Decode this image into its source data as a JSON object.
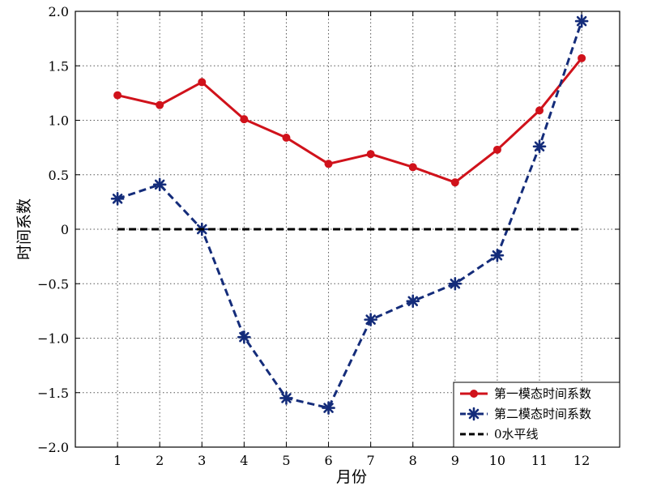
{
  "chart_data": {
    "type": "line",
    "title": "",
    "xlabel": "月份",
    "ylabel": "时间系数",
    "x": [
      1,
      2,
      3,
      4,
      5,
      6,
      7,
      8,
      9,
      10,
      11,
      12
    ],
    "x_tick_labels": [
      "1",
      "2",
      "3",
      "4",
      "5",
      "6",
      "7",
      "8",
      "9",
      "10",
      "11",
      "12"
    ],
    "ylim": [
      -2.0,
      2.0
    ],
    "y_ticks": [
      -2.0,
      -1.5,
      -1.0,
      -0.5,
      0,
      0.5,
      1.0,
      1.5,
      2.0
    ],
    "y_tick_labels": [
      "−2.0",
      "−1.5",
      "−1.0",
      "−0.5",
      "0",
      "0.5",
      "1.0",
      "1.5",
      "2.0"
    ],
    "grid": true,
    "legend_position": "bottom-right",
    "series": [
      {
        "name": "第一模态时间系数",
        "color": "#d0121b",
        "line_style": "solid",
        "marker": "circle",
        "values": [
          1.23,
          1.14,
          1.35,
          1.01,
          0.84,
          0.6,
          0.69,
          0.57,
          0.43,
          0.73,
          1.09,
          1.57
        ]
      },
      {
        "name": "第二模态时间系数",
        "color": "#142c7a",
        "line_style": "dashed",
        "marker": "star",
        "values": [
          0.28,
          0.41,
          0.0,
          -0.99,
          -1.55,
          -1.64,
          -0.83,
          -0.66,
          -0.5,
          -0.24,
          0.76,
          1.91
        ]
      },
      {
        "name": "0水平线",
        "color": "#000000",
        "line_style": "dashed",
        "marker": "none",
        "values": [
          0,
          0,
          0,
          0,
          0,
          0,
          0,
          0,
          0,
          0,
          0,
          0
        ]
      }
    ]
  }
}
